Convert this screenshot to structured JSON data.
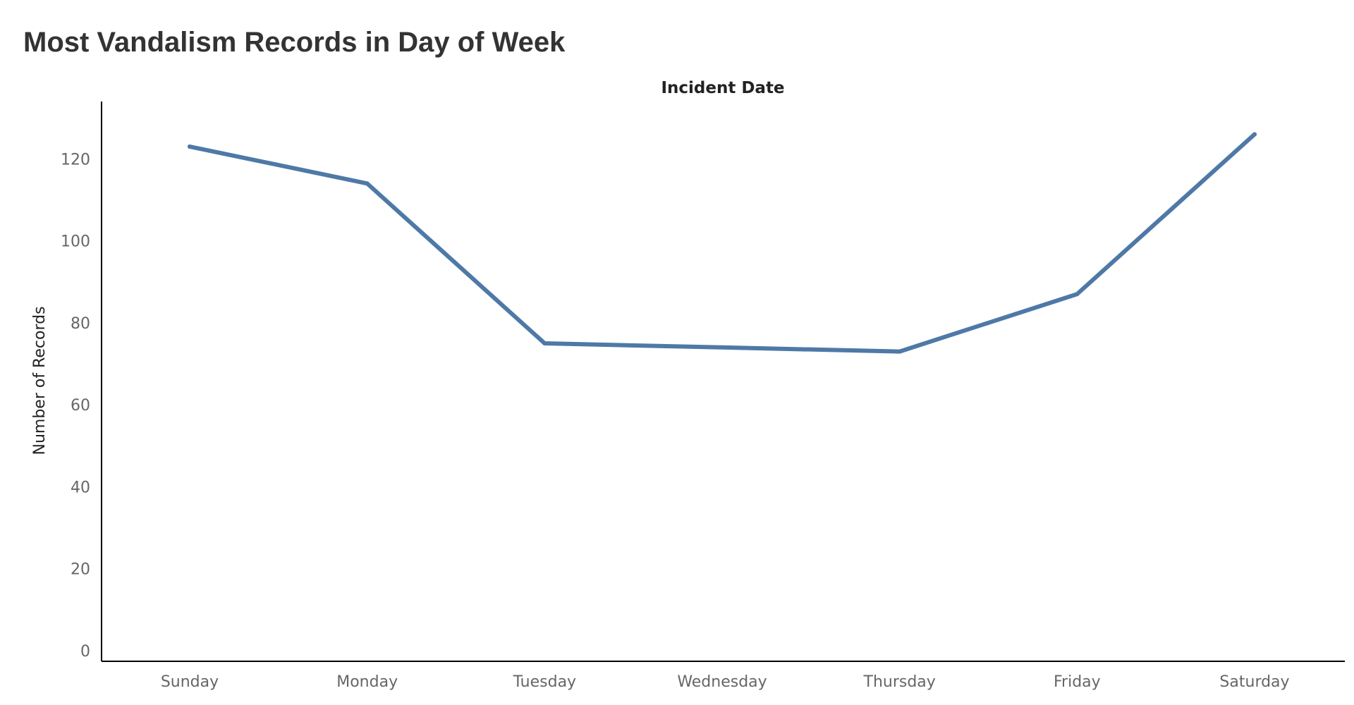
{
  "chart_data": {
    "type": "line",
    "title": "Most Vandalism Records in Day of Week",
    "xlabel": "Incident Date",
    "ylabel": "Number of Records",
    "categories": [
      "Sunday",
      "Monday",
      "Tuesday",
      "Wednesday",
      "Thursday",
      "Friday",
      "Saturday"
    ],
    "series": [
      {
        "values": [
          123,
          114,
          75,
          74,
          73,
          87,
          126
        ],
        "color": "#4e79a7"
      }
    ],
    "ylim": [
      0,
      134
    ],
    "yticks": [
      0,
      20,
      40,
      60,
      80,
      100,
      120
    ],
    "grid": false,
    "legend": "none"
  },
  "colors": {
    "line": "#4e79a7",
    "axis": "#000000",
    "title_text": "#333333",
    "tick_text": "#666666"
  }
}
